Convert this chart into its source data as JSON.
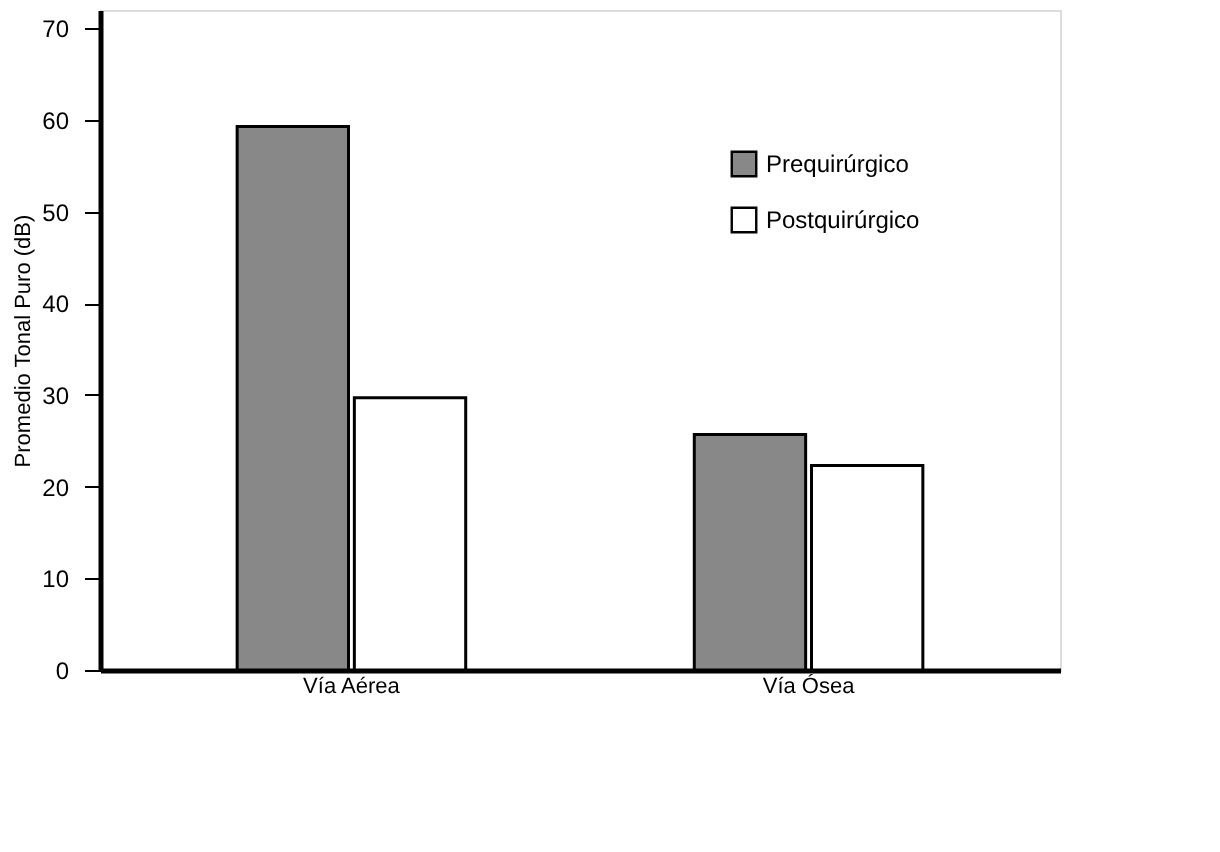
{
  "chart_data": {
    "type": "bar",
    "ylabel": "Promedio Tonal Puro (dB)",
    "categories": [
      "Vía Aérea",
      "Vía Ósea"
    ],
    "series": [
      {
        "name": "Prequirúrgico",
        "color": "#888888",
        "values": [
          59.3,
          25.7
        ]
      },
      {
        "name": "Postquirúrgico",
        "color": "#ffffff",
        "values": [
          29.7,
          22.3
        ]
      }
    ],
    "ylim": [
      0,
      72
    ],
    "yticks": [
      0,
      10,
      20,
      30,
      40,
      50,
      60,
      70
    ],
    "grid": false,
    "legend": "top right"
  }
}
